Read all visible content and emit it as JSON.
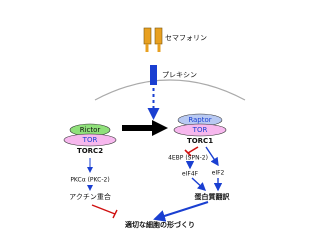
{
  "labels": {
    "semaphorin": "セマフォリン",
    "plexin": "プレキシン"
  },
  "torc2": {
    "rictor": "Rictor",
    "tor": "TOR",
    "name": "TORC2",
    "pkc": "PKCα (PKC-2)",
    "actin": "アクチン重合"
  },
  "torc1": {
    "raptor": "Raptor",
    "tor": "TOR",
    "name": "TORC1",
    "ebp": "4EBP (SPN-2)",
    "eif4f": "eIF4F",
    "eif2": "eIF2",
    "translation": "蛋白質翻訳"
  },
  "outcome": "適切な細胞の形づくり"
}
